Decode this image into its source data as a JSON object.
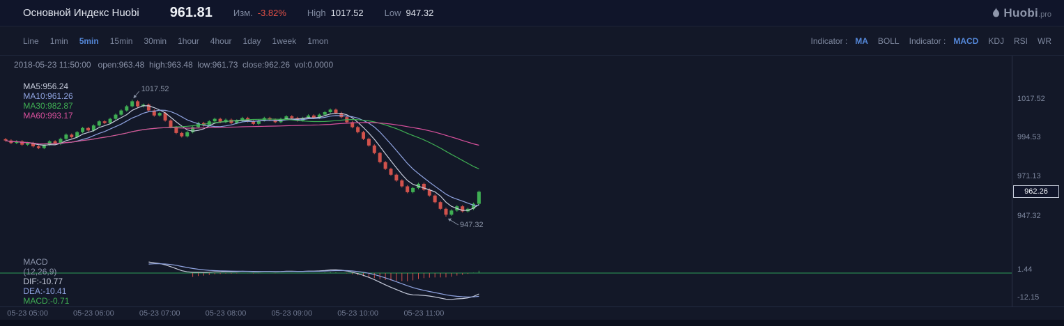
{
  "header": {
    "title": "Основной Индекс Huobi",
    "price": "961.81",
    "change_label": "Изм.",
    "change_value": "-3.82%",
    "high_label": "High",
    "high_value": "1017.52",
    "low_label": "Low",
    "low_value": "947.32",
    "logo_text": "Huobi",
    "logo_suffix": ".pro"
  },
  "toolbar": {
    "timeframes": [
      "Line",
      "1min",
      "5min",
      "15min",
      "30min",
      "1hour",
      "4hour",
      "1day",
      "1week",
      "1mon"
    ],
    "active_timeframe": "5min",
    "indicator_label": "Indicator :",
    "overlay_indicators": [
      "MA",
      "BOLL"
    ],
    "active_overlay": "MA",
    "sub_indicators": [
      "MACD",
      "KDJ",
      "RSI",
      "WR"
    ],
    "active_sub": "MACD"
  },
  "info": {
    "ohlc_line": "2018-05-23 11:50:00   open:963.48  high:963.48  low:961.73  close:962.26  vol:0.0000",
    "ma_labels": [
      "MA5:956.24",
      "MA10:961.26",
      "MA30:982.87",
      "MA60:993.17"
    ],
    "macd_title": "MACD",
    "macd_params": "(12,26,9)",
    "macd_labels": [
      "DIF:-10.77",
      "DEA:-10.41",
      "MACD:-0.71"
    ]
  },
  "chart_data": {
    "type": "candlestick",
    "title": "Основной Индекс Huobi 5min",
    "interval": "5min",
    "date": "2018-05-23",
    "high": 1017.52,
    "low": 947.32,
    "last_close": 962.26,
    "closes": [
      993,
      991.5,
      992.5,
      990.5,
      991.5,
      989.5,
      988.5,
      990.5,
      992.5,
      991,
      994,
      996.5,
      995,
      998,
      1000.5,
      999,
      1002,
      1004.5,
      1003.5,
      1006,
      1008.5,
      1011,
      1013.5,
      1016.5,
      1013.5,
      1014.5,
      1011,
      1008,
      1009.5,
      1005,
      1001,
      997.5,
      995.5,
      998,
      1001,
      1003.5,
      1002,
      1004.5,
      1006,
      1004,
      1005.5,
      1003.5,
      1005,
      1006.5,
      1004.5,
      1003,
      1005,
      1006.5,
      1005.5,
      1004,
      1006,
      1007.5,
      1006.5,
      1005,
      1006.5,
      1008,
      1006.5,
      1008.5,
      1010,
      1011.5,
      1009.5,
      1007,
      1004,
      1001,
      998,
      994,
      990,
      985.5,
      980,
      976,
      972.5,
      969,
      965.5,
      962,
      964.5,
      967,
      963.5,
      960,
      956,
      952,
      948.5,
      951,
      953.5,
      950.5,
      952,
      955,
      962.26
    ],
    "peak_index": 23,
    "low_index": 80,
    "peak_annotation": "1017.52",
    "low_annotation": "947.32",
    "price_axis_ticks": [
      "1017.52",
      "994.53",
      "971.13",
      "947.32"
    ],
    "current_price_label": "962.26",
    "x_labels": [
      "05-23 05:00",
      "05-23 06:00",
      "05-23 07:00",
      "05-23 08:00",
      "05-23 09:00",
      "05-23 10:00",
      "05-23 11:00"
    ],
    "x_label_indices": [
      4,
      16,
      28,
      40,
      52,
      64,
      76
    ],
    "ma_periods": [
      5,
      10,
      30,
      60
    ],
    "macd_params": [
      12,
      26,
      9
    ],
    "macd_axis_ticks": [
      "1.44",
      "-12.15"
    ],
    "colors": {
      "up": "#3fae53",
      "down": "#d1524c",
      "ma5": "#c6cbdb",
      "ma10": "#8fa3e0",
      "ma30": "#3fae53",
      "ma60": "#d8509c",
      "dif": "#c6cbdb",
      "dea": "#8fa3e0",
      "hist_up": "#3fae53",
      "hist_down": "#d1524c",
      "zero_line": "#2e9e57",
      "accent": "#5487d8",
      "red": "#e25046",
      "annotation": "#8a93a6"
    }
  }
}
